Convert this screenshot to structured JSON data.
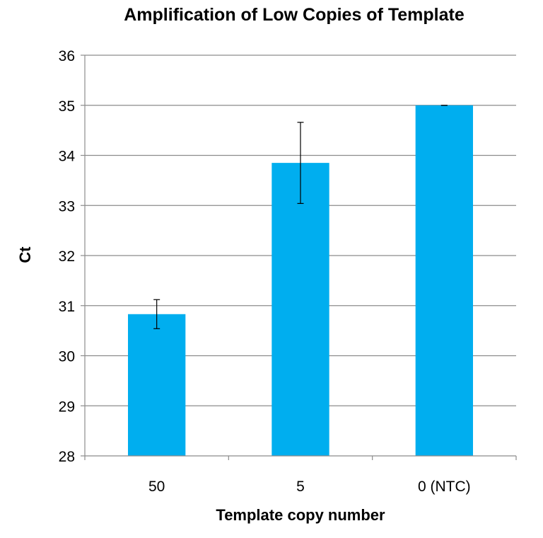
{
  "chart_data": {
    "type": "bar",
    "title": "Amplification of Low Copies of Template",
    "xlabel": "Template copy number",
    "ylabel": "Ct",
    "categories": [
      "50",
      "5",
      "0 (NTC)"
    ],
    "values": [
      30.83,
      33.85,
      35.0
    ],
    "error_bars": [
      0.29,
      0.81,
      0.0
    ],
    "ylim": [
      28,
      36
    ],
    "yticks": [
      28,
      29,
      30,
      31,
      32,
      33,
      34,
      35,
      36
    ],
    "grid": true,
    "legend": "none",
    "bar_color": "#00AEEF",
    "grid_color": "#8C8C8C"
  }
}
